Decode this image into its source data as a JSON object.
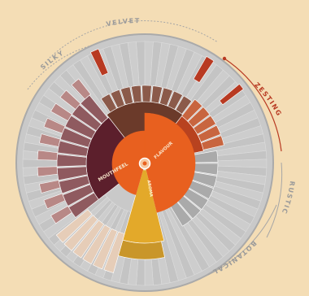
{
  "wheel": {
    "center_label": "FLAVOUR",
    "inner_segments": {
      "mouthfeel": "MOUTHFEEL",
      "aroma": "AROMA"
    },
    "outer_labels": {
      "velvet": "VELVET",
      "silky": "SILKY",
      "zesting": "ZESTING",
      "rustic": "RUSTIC",
      "botanical": "BOTANICAL"
    }
  },
  "colors": {
    "background": "#f4ddb5",
    "flavour": "#e8601f",
    "mouthfeel": "#5c1f2c",
    "aroma": "#e3a92a",
    "zesting_accent": "#b83a22",
    "wheel_grey": "#bdbdbd",
    "arc_grey": "#9a9a9a"
  }
}
